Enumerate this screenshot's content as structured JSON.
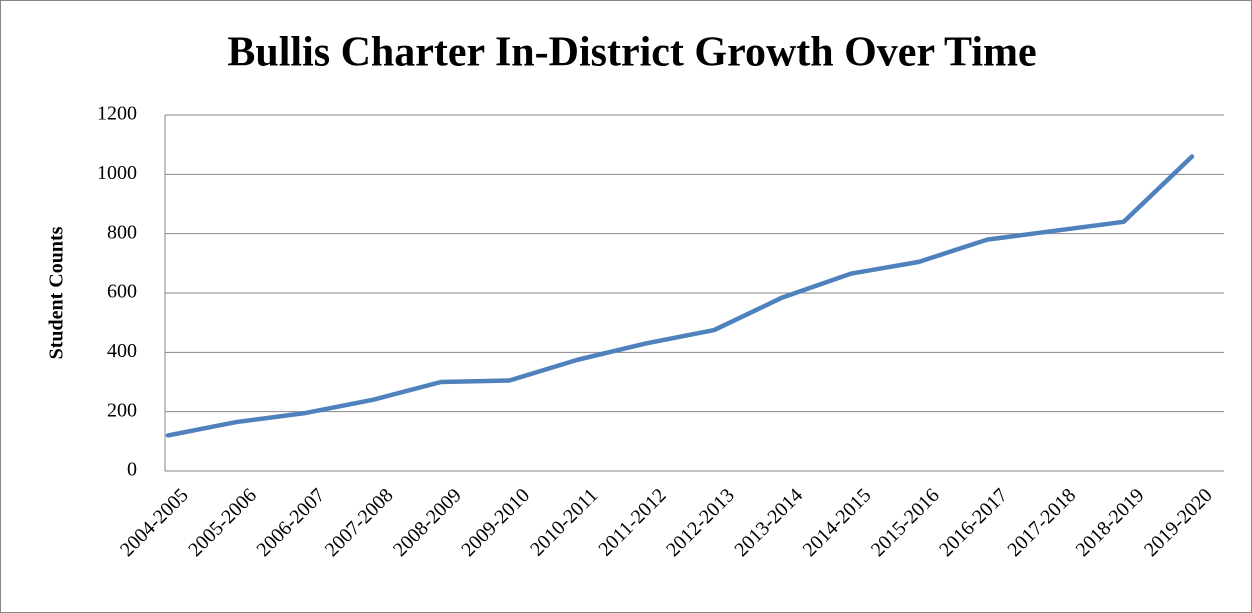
{
  "chart_data": {
    "type": "line",
    "title": "Bullis Charter In-District Growth Over Time",
    "y_label": "Student Counts",
    "categories": [
      "2004-2005",
      "2005-2006",
      "2006-2007",
      "2007-2008",
      "2008-2009",
      "2009-2010",
      "2010-2011",
      "2011-2012",
      "2012-2013",
      "2013-2014",
      "2014-2015",
      "2015-2016",
      "2016-2017",
      "2017-2018",
      "2018-2019",
      "2019-2020"
    ],
    "values": [
      120,
      165,
      195,
      240,
      300,
      305,
      375,
      430,
      475,
      585,
      665,
      705,
      780,
      810,
      840,
      1060
    ],
    "color": "#4f81bd",
    "ylim": [
      0,
      1200
    ],
    "yticks": [
      0,
      200,
      400,
      600,
      800,
      1000,
      1200
    ],
    "grid": true
  }
}
